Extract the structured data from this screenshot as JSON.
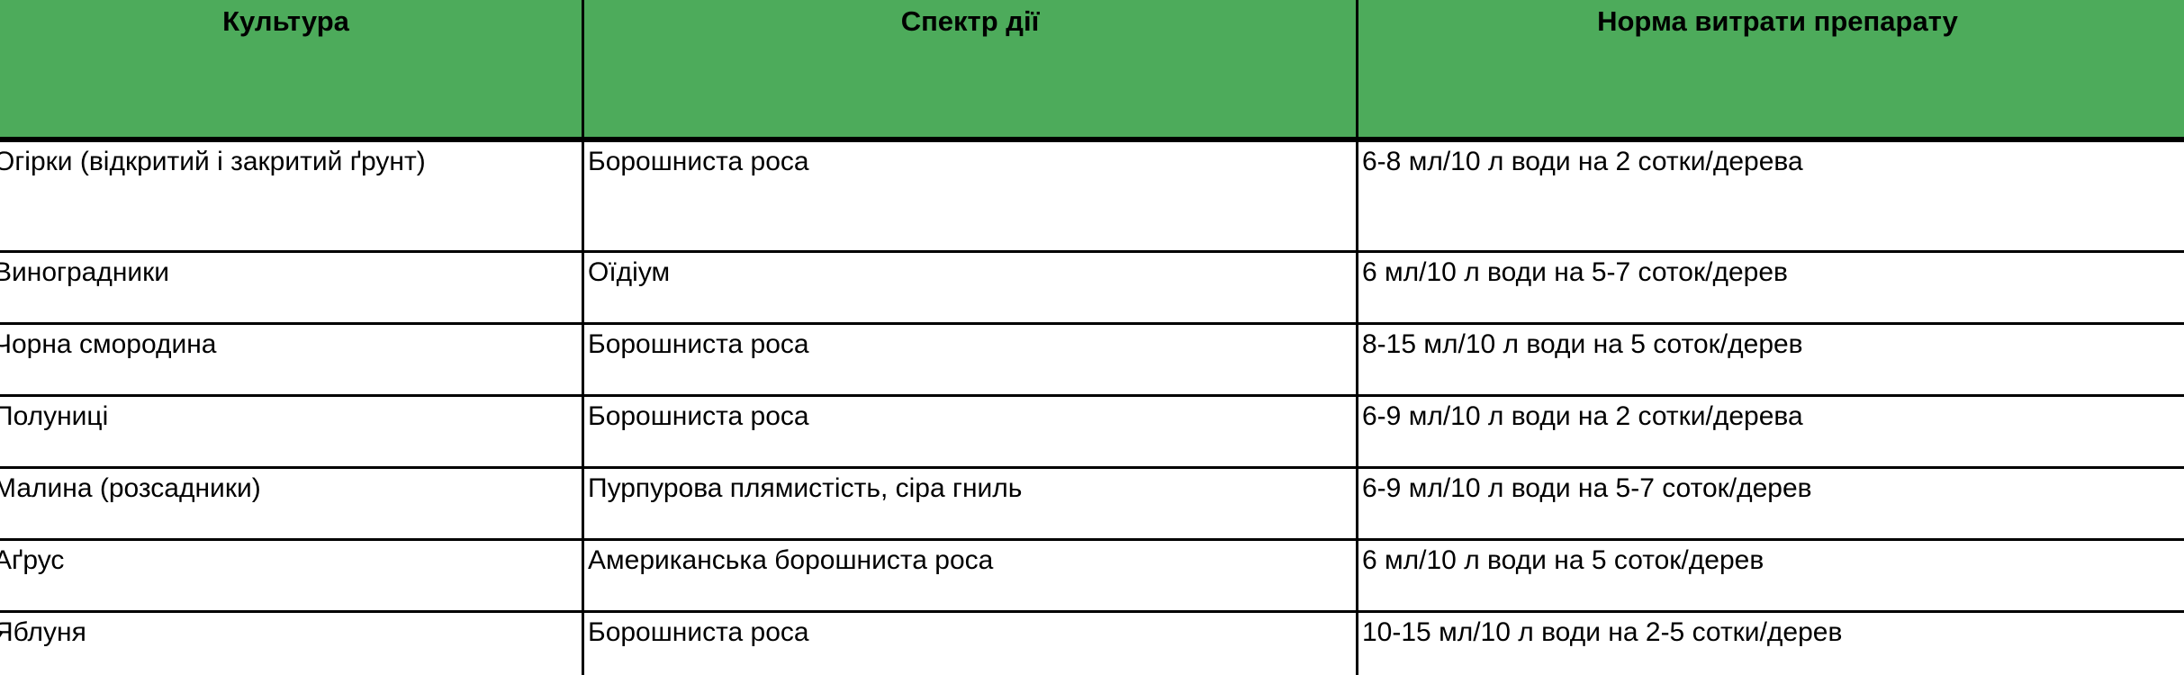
{
  "table": {
    "columns": [
      {
        "label": "Культура"
      },
      {
        "label": "Спектр дії"
      },
      {
        "label": "Норма витрати препарату"
      }
    ],
    "rows": [
      {
        "culture": "Огірки (відкритий і закритий ґрунт)",
        "spectrum": "Борошниста роса",
        "rate": "6-8 мл/10 л води на 2 сотки/дерева"
      },
      {
        "culture": "Виноградники",
        "spectrum": "Оїдіум",
        "rate": "6 мл/10 л води на 5-7 соток/дерев"
      },
      {
        "culture": "Чорна смородина",
        "spectrum": "Борошниста роса",
        "rate": "8-15 мл/10 л води на 5 соток/дерев"
      },
      {
        "culture": "Полуниці",
        "spectrum": "Борошниста роса",
        "rate": "6-9 мл/10 л води на 2 сотки/дерева"
      },
      {
        "culture": "Малина (розсадники)",
        "spectrum": "Пурпурова плямистість, сіра гниль",
        "rate": "6-9 мл/10 л води на 5-7 соток/дерев"
      },
      {
        "culture": "Аґрус",
        "spectrum": "Американська борошниста роса",
        "rate": "6 мл/10 л води на 5 соток/дерев"
      },
      {
        "culture": "Яблуня",
        "spectrum": "Борошниста роса",
        "rate": "10-15 мл/10 л води на 2-5 сотки/дерев"
      }
    ],
    "colors": {
      "header_bg": "#4DAB5B",
      "header_text": "#000000",
      "border": "#000000",
      "row_bg": "#FFFFFF"
    }
  }
}
